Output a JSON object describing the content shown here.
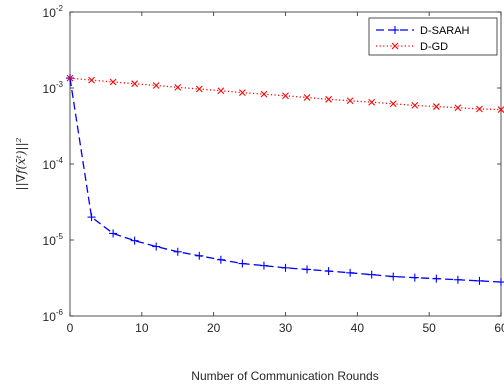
{
  "chart_data": {
    "type": "line",
    "title": "",
    "xlabel": "Number of Communication Rounds",
    "ylabel": "||∇f(x̄ᵗ)||²",
    "xlim": [
      0,
      60
    ],
    "ylim": [
      1e-06,
      0.01
    ],
    "yscale": "log",
    "grid": false,
    "legend_position": "top-right",
    "x_ticks": [
      {
        "value": 0,
        "label": "0"
      },
      {
        "value": 10,
        "label": "10"
      },
      {
        "value": 20,
        "label": "20"
      },
      {
        "value": 30,
        "label": "30"
      },
      {
        "value": 40,
        "label": "40"
      },
      {
        "value": 50,
        "label": "50"
      },
      {
        "value": 60,
        "label": "60"
      }
    ],
    "y_ticks": [
      {
        "value": 1e-06,
        "base": "10",
        "exp": "-6"
      },
      {
        "value": 1e-05,
        "base": "10",
        "exp": "-5"
      },
      {
        "value": 0.0001,
        "base": "10",
        "exp": "-4"
      },
      {
        "value": 0.001,
        "base": "10",
        "exp": "-3"
      },
      {
        "value": 0.01,
        "base": "10",
        "exp": "-2"
      }
    ],
    "series": [
      {
        "name": "D-SARAH",
        "color": "#0000ff",
        "line_style": "dashed",
        "marker": "plus",
        "x": [
          0,
          3,
          6,
          9,
          12,
          15,
          18,
          21,
          24,
          27,
          30,
          33,
          36,
          39,
          42,
          45,
          48,
          51,
          54,
          57,
          60
        ],
        "y": [
          0.00135,
          2e-05,
          1.22e-05,
          9.8e-06,
          8.2e-06,
          7e-06,
          6.2e-06,
          5.5e-06,
          4.9e-06,
          4.6e-06,
          4.3e-06,
          4.1e-06,
          3.9e-06,
          3.7e-06,
          3.5e-06,
          3.3e-06,
          3.2e-06,
          3.1e-06,
          3e-06,
          2.9e-06,
          2.8e-06
        ]
      },
      {
        "name": "D-GD",
        "color": "#ff0000",
        "line_style": "dotted",
        "marker": "x",
        "x": [
          0,
          3,
          6,
          9,
          12,
          15,
          18,
          21,
          24,
          27,
          30,
          33,
          36,
          39,
          42,
          45,
          48,
          51,
          54,
          57,
          60
        ],
        "y": [
          0.00135,
          0.00127,
          0.0012,
          0.00114,
          0.00108,
          0.00102,
          0.00097,
          0.00092,
          0.00087,
          0.00083,
          0.00079,
          0.00075,
          0.00071,
          0.00068,
          0.00065,
          0.00062,
          0.00059,
          0.00057,
          0.00055,
          0.00053,
          0.00052
        ]
      }
    ]
  }
}
